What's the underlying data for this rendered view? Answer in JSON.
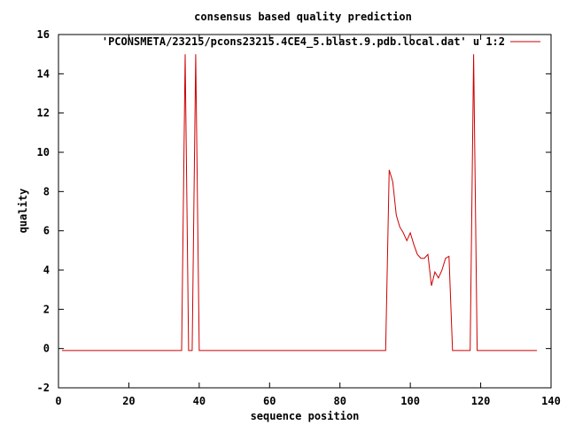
{
  "chart_data": {
    "type": "line",
    "title": "consensus based quality prediction",
    "xlabel": "sequence position",
    "ylabel": "quality",
    "xlim": [
      0,
      140
    ],
    "ylim": [
      -2,
      16
    ],
    "xticks": [
      "0",
      "20",
      "40",
      "60",
      "80",
      "100",
      "120",
      "140"
    ],
    "yticks": [
      "-2",
      "0",
      "2",
      "4",
      "6",
      "8",
      "10",
      "12",
      "14",
      "16"
    ],
    "grid": false,
    "legend_position": "top-right",
    "series": [
      {
        "name": "'PCONSMETA/23215/pcons23215.4CE4_5.blast.9.pdb.local.dat' u 1:2",
        "color": "#cc0000",
        "x": [
          1,
          35,
          36,
          37,
          38,
          39,
          40,
          93,
          94,
          95,
          96,
          97,
          98,
          99,
          100,
          101,
          102,
          103,
          104,
          105,
          106,
          107,
          108,
          109,
          110,
          111,
          112,
          117,
          118,
          119,
          136
        ],
        "y": [
          -0.1,
          -0.1,
          15,
          -0.1,
          -0.1,
          15,
          -0.1,
          -0.1,
          9.1,
          8.5,
          6.8,
          6.2,
          5.9,
          5.5,
          5.9,
          5.3,
          4.8,
          4.6,
          4.6,
          4.8,
          3.2,
          3.9,
          3.6,
          4.0,
          4.6,
          4.7,
          -0.1,
          -0.1,
          15,
          -0.1,
          -0.1
        ]
      }
    ]
  }
}
